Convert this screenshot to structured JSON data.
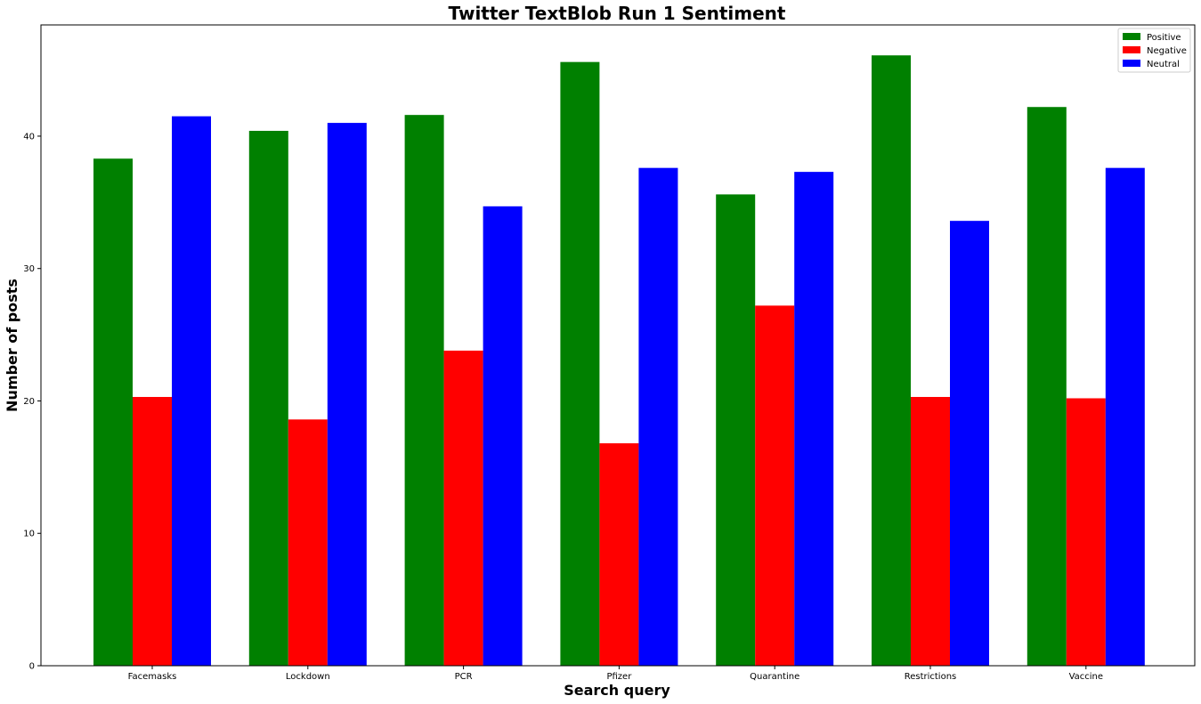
{
  "chart_data": {
    "type": "bar",
    "title": "Twitter TextBlob Run 1 Sentiment",
    "xlabel": "Search query",
    "ylabel": "Number of posts",
    "categories": [
      "Facemasks",
      "Lockdown",
      "PCR",
      "Pfizer",
      "Quarantine",
      "Restrictions",
      "Vaccine"
    ],
    "series": [
      {
        "name": "Positive",
        "color": "#008000",
        "values": [
          38.3,
          40.4,
          41.6,
          45.6,
          35.6,
          46.1,
          42.2
        ]
      },
      {
        "name": "Negative",
        "color": "#ff0000",
        "values": [
          20.3,
          18.6,
          23.8,
          16.8,
          27.2,
          20.3,
          20.2
        ]
      },
      {
        "name": "Neutral",
        "color": "#0000ff",
        "values": [
          41.5,
          41.0,
          34.7,
          37.6,
          37.3,
          33.6,
          37.6
        ]
      }
    ],
    "ylim": [
      0,
      48.4
    ],
    "yticks": [
      "0",
      "10",
      "20",
      "30",
      "40"
    ],
    "grid": false,
    "legend_position": "top-right"
  }
}
